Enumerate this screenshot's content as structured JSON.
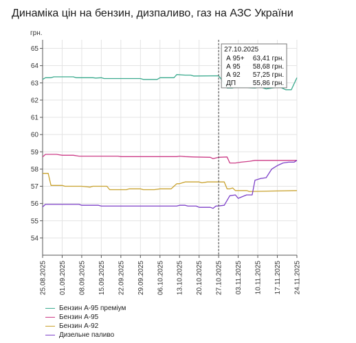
{
  "page": {
    "title": "Динаміка цін на бензин, дизпаливо, газ на АЗС України"
  },
  "chart_data": {
    "type": "line",
    "title": "Динаміка цін на бензин, дизпаливо, газ на АЗС України",
    "ylabel": "грн.",
    "ylim": [
      53,
      65.5
    ],
    "yticks": [
      54,
      55,
      56,
      57,
      58,
      59,
      60,
      61,
      62,
      63,
      64,
      65
    ],
    "xlim": [
      "25.08.2025",
      "24.11.2025"
    ],
    "xticks": [
      "25.08.2025",
      "01.09.2025",
      "08.09.2025",
      "15.09.2025",
      "22.09.2025",
      "29.09.2025",
      "06.10.2025",
      "13.10.2025",
      "20.10.2025",
      "27.10.2025",
      "03.11.2025",
      "10.11.2025",
      "17.11.2025",
      "24.11.2025"
    ],
    "grid": true,
    "legend_position": "bottom-left",
    "cursor_date": "27.10.2025",
    "tooltip": {
      "date": "27.10.2025",
      "rows": [
        {
          "label": "А 95+",
          "value": "63,41 грн."
        },
        {
          "label": "А 95",
          "value": "58,68 грн."
        },
        {
          "label": "А 92",
          "value": "57,25 грн."
        },
        {
          "label": "ДП",
          "value": "55,86 грн."
        }
      ]
    },
    "series": [
      {
        "name": "Бензин А-95 преміум",
        "color": "#3aaa8e",
        "points": [
          [
            "25.08.2025",
            63.2
          ],
          [
            "26.08.2025",
            63.3
          ],
          [
            "28.08.2025",
            63.3
          ],
          [
            "29.08.2025",
            63.35
          ],
          [
            "05.09.2025",
            63.35
          ],
          [
            "06.09.2025",
            63.3
          ],
          [
            "12.09.2025",
            63.3
          ],
          [
            "13.09.2025",
            63.28
          ],
          [
            "15.09.2025",
            63.3
          ],
          [
            "16.09.2025",
            63.25
          ],
          [
            "29.09.2025",
            63.25
          ],
          [
            "30.09.2025",
            63.2
          ],
          [
            "05.10.2025",
            63.2
          ],
          [
            "06.10.2025",
            63.3
          ],
          [
            "11.10.2025",
            63.3
          ],
          [
            "12.10.2025",
            63.48
          ],
          [
            "15.10.2025",
            63.45
          ],
          [
            "17.10.2025",
            63.45
          ],
          [
            "18.10.2025",
            63.4
          ],
          [
            "27.10.2025",
            63.41
          ],
          [
            "28.10.2025",
            63.2
          ],
          [
            "30.10.2025",
            62.7
          ],
          [
            "01.11.2025",
            62.7
          ],
          [
            "02.11.2025",
            62.75
          ],
          [
            "09.11.2025",
            62.7
          ],
          [
            "11.11.2025",
            62.75
          ],
          [
            "13.11.2025",
            62.65
          ],
          [
            "15.11.2025",
            62.7
          ],
          [
            "18.11.2025",
            62.75
          ],
          [
            "20.11.2025",
            62.6
          ],
          [
            "22.11.2025",
            62.6
          ],
          [
            "24.11.2025",
            63.3
          ]
        ]
      },
      {
        "name": "Бензин А-95",
        "color": "#cc3b86",
        "points": [
          [
            "25.08.2025",
            58.7
          ],
          [
            "26.08.2025",
            58.85
          ],
          [
            "30.08.2025",
            58.85
          ],
          [
            "01.09.2025",
            58.8
          ],
          [
            "05.09.2025",
            58.8
          ],
          [
            "07.09.2025",
            58.75
          ],
          [
            "21.09.2025",
            58.75
          ],
          [
            "22.09.2025",
            58.72
          ],
          [
            "12.10.2025",
            58.72
          ],
          [
            "13.10.2025",
            58.75
          ],
          [
            "15.10.2025",
            58.72
          ],
          [
            "18.10.2025",
            58.7
          ],
          [
            "24.10.2025",
            58.68
          ],
          [
            "25.10.2025",
            58.6
          ],
          [
            "27.10.2025",
            58.68
          ],
          [
            "30.10.2025",
            58.7
          ],
          [
            "31.10.2025",
            58.35
          ],
          [
            "02.11.2025",
            58.35
          ],
          [
            "04.11.2025",
            58.4
          ],
          [
            "07.11.2025",
            58.45
          ],
          [
            "09.11.2025",
            58.5
          ],
          [
            "24.11.2025",
            58.5
          ]
        ]
      },
      {
        "name": "Бензин А-92",
        "color": "#c9a22e",
        "points": [
          [
            "25.08.2025",
            57.75
          ],
          [
            "27.08.2025",
            57.75
          ],
          [
            "28.08.2025",
            57.05
          ],
          [
            "01.09.2025",
            57.05
          ],
          [
            "02.09.2025",
            57.0
          ],
          [
            "07.09.2025",
            57.0
          ],
          [
            "08.09.2025",
            57.0
          ],
          [
            "11.09.2025",
            56.95
          ],
          [
            "12.09.2025",
            57.0
          ],
          [
            "17.09.2025",
            57.0
          ],
          [
            "18.09.2025",
            56.8
          ],
          [
            "24.09.2025",
            56.8
          ],
          [
            "25.09.2025",
            56.85
          ],
          [
            "29.09.2025",
            56.85
          ],
          [
            "30.09.2025",
            56.8
          ],
          [
            "04.10.2025",
            56.8
          ],
          [
            "06.10.2025",
            56.85
          ],
          [
            "10.10.2025",
            56.85
          ],
          [
            "12.10.2025",
            57.15
          ],
          [
            "13.10.2025",
            57.15
          ],
          [
            "15.10.2025",
            57.25
          ],
          [
            "20.10.2025",
            57.25
          ],
          [
            "21.10.2025",
            57.2
          ],
          [
            "23.10.2025",
            57.25
          ],
          [
            "27.10.2025",
            57.25
          ],
          [
            "29.10.2025",
            57.25
          ],
          [
            "30.10.2025",
            56.85
          ],
          [
            "31.10.2025",
            56.85
          ],
          [
            "01.11.2025",
            56.9
          ],
          [
            "02.11.2025",
            56.75
          ],
          [
            "06.11.2025",
            56.75
          ],
          [
            "07.11.2025",
            56.7
          ],
          [
            "24.11.2025",
            56.75
          ]
        ]
      },
      {
        "name": "Дизельне паливо",
        "color": "#7c3fc8",
        "points": [
          [
            "25.08.2025",
            55.8
          ],
          [
            "26.08.2025",
            55.95
          ],
          [
            "07.09.2025",
            55.95
          ],
          [
            "08.09.2025",
            55.9
          ],
          [
            "14.09.2025",
            55.9
          ],
          [
            "15.09.2025",
            55.85
          ],
          [
            "12.10.2025",
            55.85
          ],
          [
            "13.10.2025",
            55.9
          ],
          [
            "15.10.2025",
            55.9
          ],
          [
            "16.10.2025",
            55.85
          ],
          [
            "19.10.2025",
            55.85
          ],
          [
            "20.10.2025",
            55.78
          ],
          [
            "24.10.2025",
            55.78
          ],
          [
            "25.10.2025",
            55.72
          ],
          [
            "26.10.2025",
            55.85
          ],
          [
            "27.10.2025",
            55.86
          ],
          [
            "29.10.2025",
            55.9
          ],
          [
            "31.10.2025",
            56.45
          ],
          [
            "02.11.2025",
            56.5
          ],
          [
            "03.11.2025",
            56.3
          ],
          [
            "06.11.2025",
            56.5
          ],
          [
            "08.11.2025",
            56.5
          ],
          [
            "09.11.2025",
            57.35
          ],
          [
            "11.11.2025",
            57.45
          ],
          [
            "13.11.2025",
            57.5
          ],
          [
            "15.11.2025",
            58.0
          ],
          [
            "17.11.2025",
            58.2
          ],
          [
            "19.11.2025",
            58.35
          ],
          [
            "21.11.2025",
            58.4
          ],
          [
            "23.11.2025",
            58.4
          ],
          [
            "24.11.2025",
            58.5
          ]
        ]
      }
    ]
  }
}
